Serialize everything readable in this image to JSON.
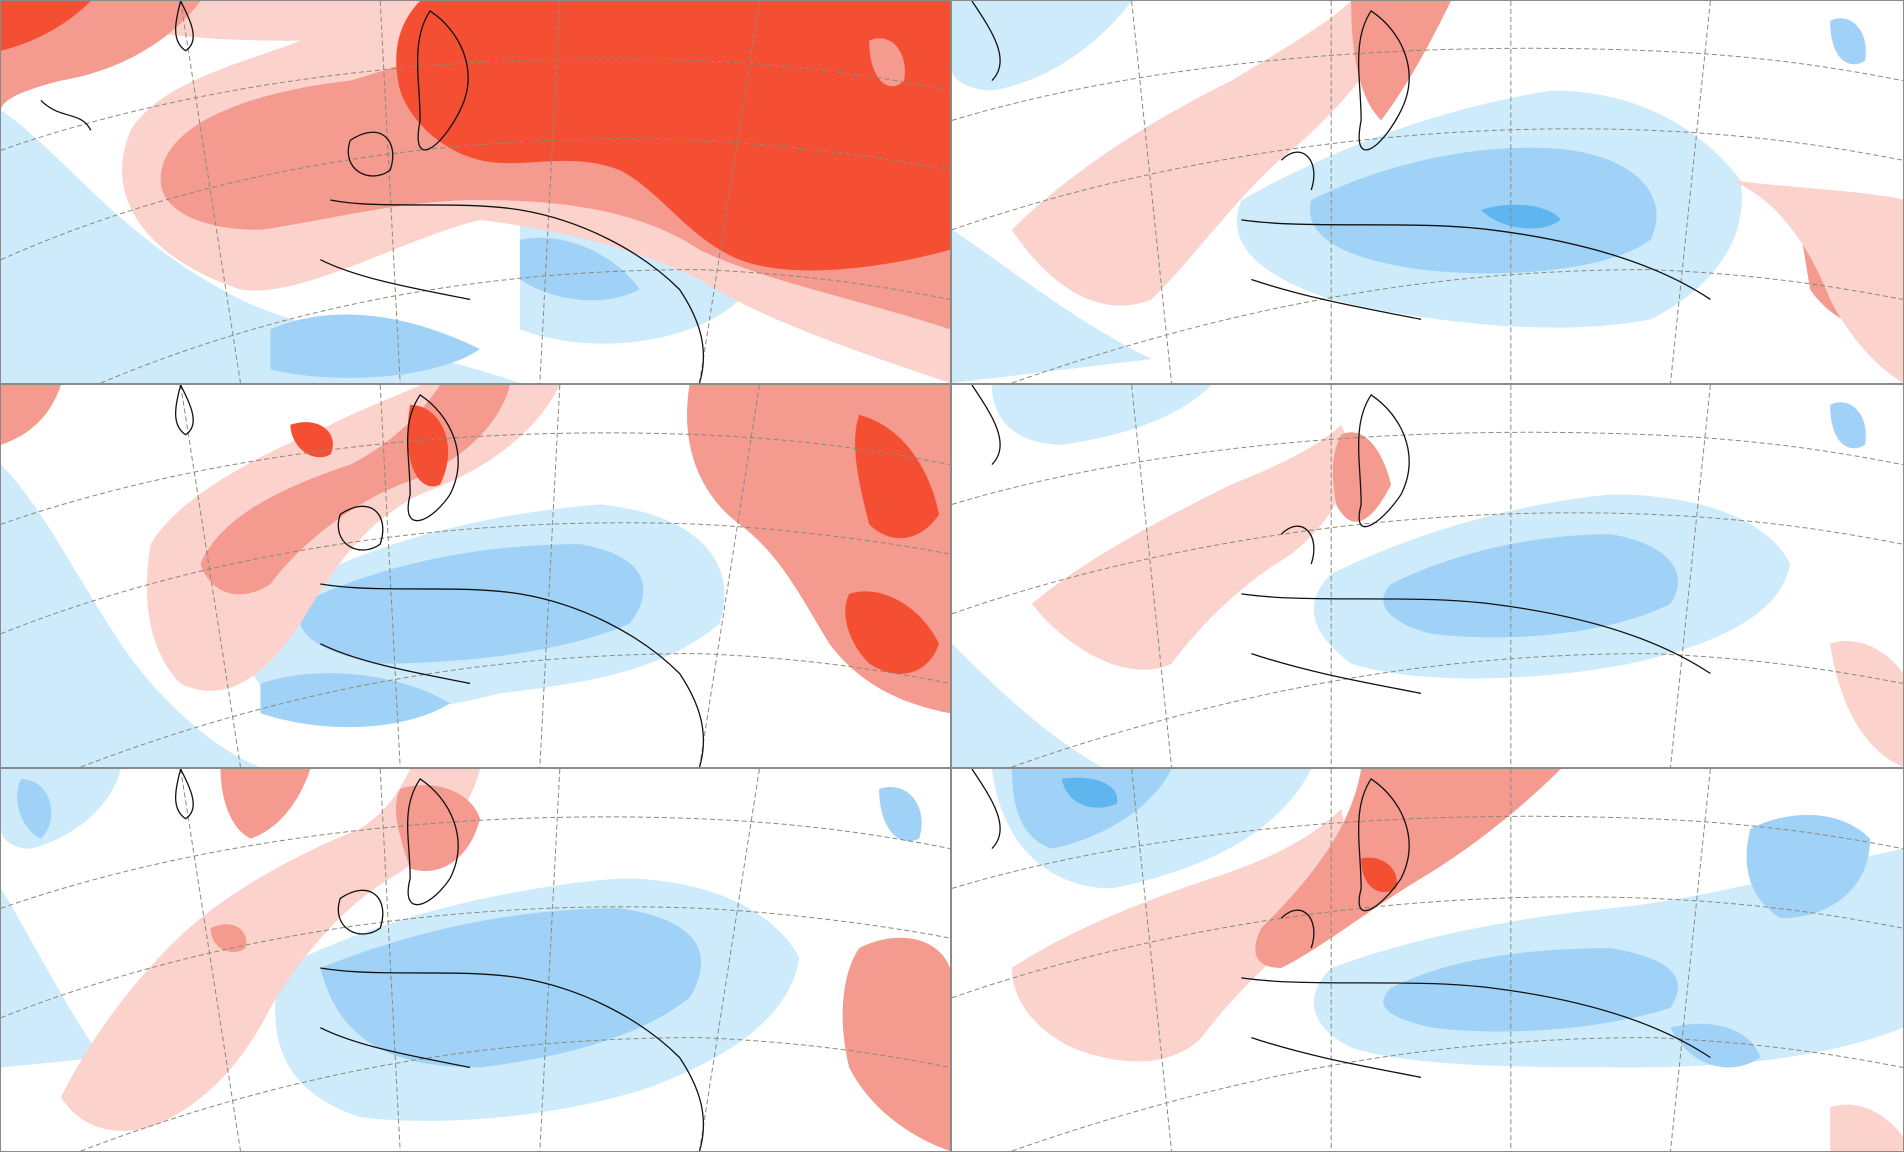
{
  "figure": {
    "layout": {
      "rows": 3,
      "columns": 2
    },
    "colors": {
      "strong_warm": "#f44f33",
      "warm": "#f49a8e",
      "mild_warm": "#fbd2cc",
      "neutral": "#ffffff",
      "mild_cool": "#cdebfb",
      "cool": "#a0d2f7",
      "strong_cool": "#5fb5ee",
      "coastline": "#111111",
      "graticule": "#8a8a7a"
    },
    "panels": [
      {
        "name": "panel-top-left",
        "pattern": "warm-north-east"
      },
      {
        "name": "panel-top-right",
        "pattern": "cool-continent"
      },
      {
        "name": "panel-middle-left",
        "pattern": "warm-east-cool-south"
      },
      {
        "name": "panel-middle-right",
        "pattern": "mild-mixed"
      },
      {
        "name": "panel-bottom-left",
        "pattern": "cool-central"
      },
      {
        "name": "panel-bottom-right",
        "pattern": "warm-scandinavia"
      }
    ]
  }
}
